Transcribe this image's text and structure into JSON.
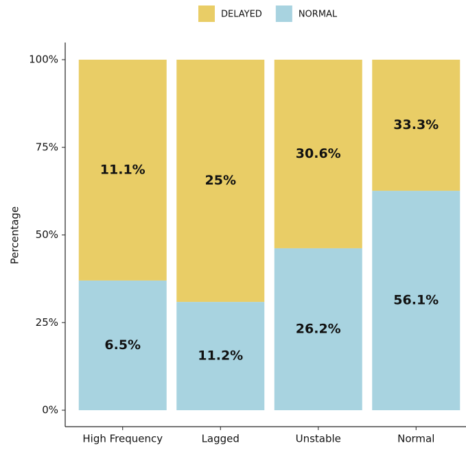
{
  "chart_data": {
    "type": "stacked_bar",
    "y_label": "Percentage",
    "categories": [
      "High Frequency",
      "Lagged",
      "Unstable",
      "Normal"
    ],
    "series": [
      {
        "name": "NORMAL",
        "color": "#a8d3e0",
        "values": [
          37.0,
          30.9,
          46.2,
          62.6
        ],
        "labels": [
          "6.5%",
          "11.2%",
          "26.2%",
          "56.1%"
        ]
      },
      {
        "name": "DELAYED",
        "color": "#e9cd66",
        "values": [
          63.0,
          69.1,
          53.8,
          37.4
        ],
        "labels": [
          "11.1%",
          "25%",
          "30.6%",
          "33.3%"
        ]
      }
    ],
    "legend_order": [
      1,
      0
    ],
    "ylim": [
      0,
      100
    ],
    "yticks": [
      {
        "value": 0,
        "label": "0%"
      },
      {
        "value": 25,
        "label": "25%"
      },
      {
        "value": 50,
        "label": "50%"
      },
      {
        "value": 75,
        "label": "75%"
      },
      {
        "value": 100,
        "label": "100%"
      }
    ]
  }
}
